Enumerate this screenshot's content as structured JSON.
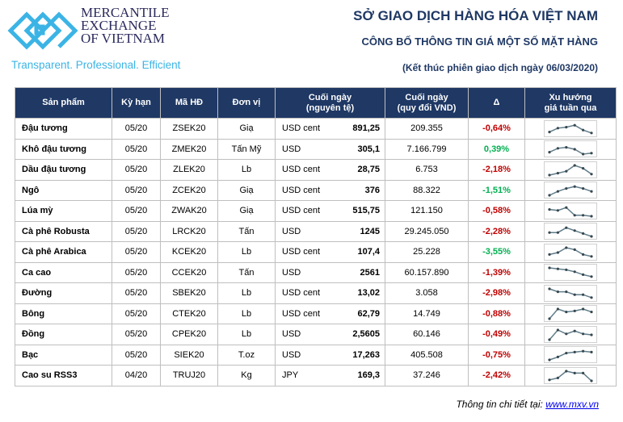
{
  "header": {
    "brand": [
      "MERCANTILE",
      "EXCHANGE",
      "OF VIETNAM"
    ],
    "tagline": "Transparent. Professional. Efficient",
    "title": "SỞ GIAO DỊCH HÀNG HÓA VIỆT NAM",
    "subtitle": "CÔNG BỐ THÔNG TIN GIÁ MỘT SỐ MẶT HÀNG",
    "session": "(Kết thúc phiên giao dịch ngày 06/03/2020)"
  },
  "table": {
    "headers": [
      "Sản phẩm",
      "Kỳ hạn",
      "Mã HĐ",
      "Đơn vị",
      "Cuối ngày\n(nguyên tệ)",
      "Cuối ngày\n(quy đổi VND)",
      "Δ",
      "Xu hướng\ngiá tuần qua"
    ],
    "rows": [
      {
        "name": "Đậu tương",
        "term": "05/20",
        "code": "ZSEK20",
        "unit": "Giạ",
        "cur": "USD cent",
        "close": "891,25",
        "vnd": "209.355",
        "delta": "-0,64%",
        "color": "neg",
        "trend": [
          2,
          6,
          7,
          9,
          4,
          1
        ]
      },
      {
        "name": "Khô đậu tương",
        "term": "05/20",
        "code": "ZMEK20",
        "unit": "Tấn Mỹ",
        "cur": "USD",
        "close": "305,1",
        "vnd": "7.166.799",
        "delta": "0,39%",
        "color": "pos",
        "trend": [
          2,
          6,
          7,
          5,
          0,
          1
        ]
      },
      {
        "name": "Dầu đậu tương",
        "term": "05/20",
        "code": "ZLEK20",
        "unit": "Lb",
        "cur": "USD cent",
        "close": "28,75",
        "vnd": "6.753",
        "delta": "-2,18%",
        "color": "neg",
        "trend": [
          0,
          2,
          4,
          10,
          7,
          1
        ]
      },
      {
        "name": "Ngô",
        "term": "05/20",
        "code": "ZCEK20",
        "unit": "Giạ",
        "cur": "USD cent",
        "close": "376",
        "vnd": "88.322",
        "delta": "-1,51%",
        "color": "pos",
        "trend": [
          0,
          4,
          7,
          9,
          7,
          4
        ]
      },
      {
        "name": "Lúa mỳ",
        "term": "05/20",
        "code": "ZWAK20",
        "unit": "Giạ",
        "cur": "USD cent",
        "close": "515,75",
        "vnd": "121.150",
        "delta": "-0,58%",
        "color": "neg",
        "trend": [
          7,
          6,
          9,
          1,
          1,
          0
        ]
      },
      {
        "name": "Cà phê Robusta",
        "term": "05/20",
        "code": "LRCK20",
        "unit": "Tấn",
        "cur": "USD",
        "close": "1245",
        "vnd": "29.245.050",
        "delta": "-2,28%",
        "color": "neg",
        "trend": [
          4,
          4,
          9,
          6,
          3,
          0
        ]
      },
      {
        "name": "Cà phê Arabica",
        "term": "05/20",
        "code": "KCEK20",
        "unit": "Lb",
        "cur": "USD cent",
        "close": "107,4",
        "vnd": "25.228",
        "delta": "-3,55%",
        "color": "pos",
        "trend": [
          3,
          5,
          10,
          8,
          3,
          1
        ]
      },
      {
        "name": "Ca cao",
        "term": "05/20",
        "code": "CCEK20",
        "unit": "Tấn",
        "cur": "USD",
        "close": "2561",
        "vnd": "60.157.890",
        "delta": "-1,39%",
        "color": "neg",
        "trend": [
          10,
          9,
          8,
          6,
          3,
          1
        ]
      },
      {
        "name": "Đường",
        "term": "05/20",
        "code": "SBEK20",
        "unit": "Lb",
        "cur": "USD cent",
        "close": "13,02",
        "vnd": "3.058",
        "delta": "-2,98%",
        "color": "neg",
        "trend": [
          10,
          7,
          7,
          4,
          4,
          1
        ]
      },
      {
        "name": "Bông",
        "term": "05/20",
        "code": "CTEK20",
        "unit": "Lb",
        "cur": "USD cent",
        "close": "62,79",
        "vnd": "14.749",
        "delta": "-0,88%",
        "color": "neg",
        "trend": [
          0,
          10,
          7,
          8,
          10,
          7
        ]
      },
      {
        "name": "Đồng",
        "term": "05/20",
        "code": "CPEK20",
        "unit": "Lb",
        "cur": "USD",
        "close": "2,5605",
        "vnd": "60.146",
        "delta": "-0,49%",
        "color": "neg",
        "trend": [
          0,
          10,
          6,
          9,
          6,
          5
        ]
      },
      {
        "name": "Bạc",
        "term": "05/20",
        "code": "SIEK20",
        "unit": "T.oz",
        "cur": "USD",
        "close": "17,263",
        "vnd": "405.508",
        "delta": "-0,75%",
        "color": "neg",
        "trend": [
          0,
          3,
          7,
          8,
          9,
          8
        ]
      },
      {
        "name": "Cao su RSS3",
        "term": "04/20",
        "code": "TRUJ20",
        "unit": "Kg",
        "cur": "JPY",
        "close": "169,3",
        "vnd": "37.246",
        "delta": "-2,42%",
        "color": "neg",
        "trend": [
          1,
          3,
          10,
          8,
          8,
          0
        ]
      }
    ]
  },
  "footer": {
    "label": "Thông tin chi tiết tại: ",
    "link": "www.mxv.vn"
  }
}
